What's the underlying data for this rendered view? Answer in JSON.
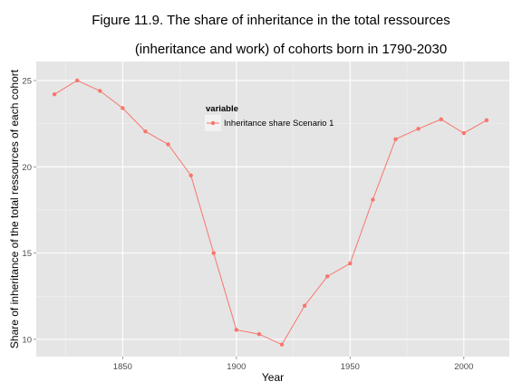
{
  "chart_data": {
    "type": "line",
    "title_line1": "Figure 11.9. The share of inheritance in the total ressources",
    "title_line2": "(inheritance and work) of cohorts born in 1790-2030",
    "xlabel": "Year",
    "ylabel": "Share of inheritance of the total ressources of each cohort",
    "xlim": [
      1812,
      2020
    ],
    "ylim": [
      9,
      26.1
    ],
    "x_ticks": [
      1850,
      1900,
      1950,
      2000
    ],
    "y_ticks": [
      10,
      15,
      20,
      25
    ],
    "grid": true,
    "legend": {
      "title": "variable",
      "placement": "top-center-inside"
    },
    "series": [
      {
        "name": "Inheritance share Scenario 1",
        "color": "#F8766D",
        "x": [
          1820,
          1830,
          1840,
          1850,
          1860,
          1870,
          1880,
          1890,
          1900,
          1910,
          1920,
          1930,
          1940,
          1950,
          1960,
          1970,
          1980,
          1990,
          2000,
          2010
        ],
        "y": [
          24.2,
          25.0,
          24.4,
          23.4,
          22.05,
          21.3,
          19.5,
          15.0,
          10.55,
          10.3,
          9.7,
          11.95,
          13.65,
          14.4,
          18.1,
          21.6,
          22.2,
          22.75,
          21.95,
          22.7
        ]
      }
    ]
  }
}
